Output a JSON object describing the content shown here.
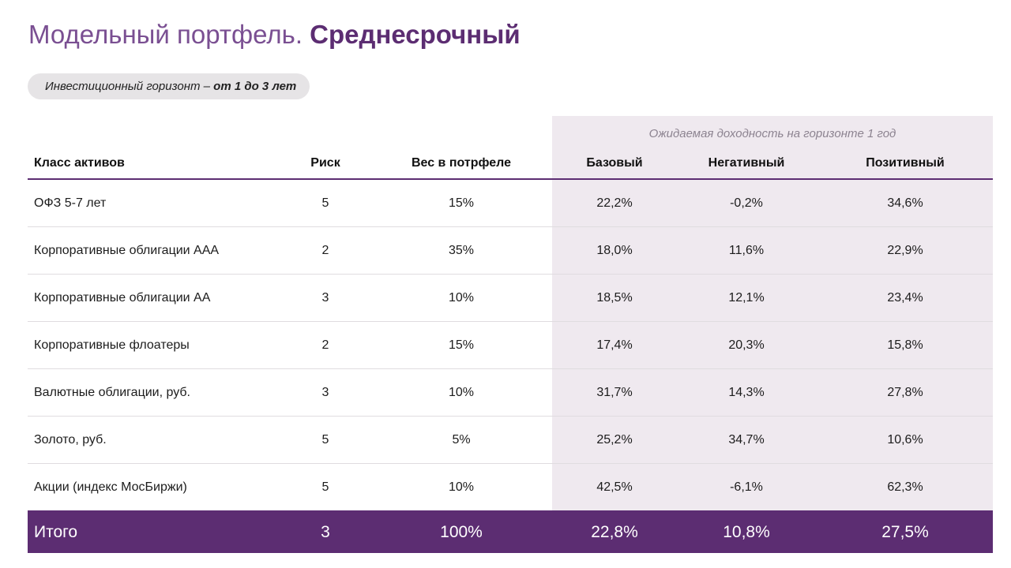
{
  "title": {
    "light": "Модельный портфель.",
    "bold": "Среднесрочный"
  },
  "horizon": {
    "prefix": "Инвестиционный горизонт – ",
    "value": "от 1 до 3 лет"
  },
  "table": {
    "group_header": "Ожидаемая доходность на горизонте 1 год",
    "columns": {
      "asset": "Класс активов",
      "risk": "Риск",
      "weight": "Вес в потрфеле",
      "base": "Базовый",
      "negative": "Негативный",
      "positive": "Позитивный"
    },
    "rows": [
      {
        "asset": "ОФЗ 5-7 лет",
        "risk": "5",
        "weight": "15%",
        "base": "22,2%",
        "negative": "-0,2%",
        "positive": "34,6%"
      },
      {
        "asset": "Корпоративные облигации ААА",
        "risk": "2",
        "weight": "35%",
        "base": "18,0%",
        "negative": "11,6%",
        "positive": "22,9%"
      },
      {
        "asset": "Корпоративные облигации АА",
        "risk": "3",
        "weight": "10%",
        "base": "18,5%",
        "negative": "12,1%",
        "positive": "23,4%"
      },
      {
        "asset": "Корпоративные флоатеры",
        "risk": "2",
        "weight": "15%",
        "base": "17,4%",
        "negative": "20,3%",
        "positive": "15,8%"
      },
      {
        "asset": "Валютные облигации, руб.",
        "risk": "3",
        "weight": "10%",
        "base": "31,7%",
        "negative": "14,3%",
        "positive": "27,8%"
      },
      {
        "asset": "Золото, руб.",
        "risk": "5",
        "weight": "5%",
        "base": "25,2%",
        "negative": "34,7%",
        "positive": "10,6%"
      },
      {
        "asset": "Акции (индекс МосБиржи)",
        "risk": "5",
        "weight": "10%",
        "base": "42,5%",
        "negative": "-6,1%",
        "positive": "62,3%"
      }
    ],
    "total": {
      "asset": "Итого",
      "risk": "3",
      "weight": "100%",
      "base": "22,8%",
      "negative": "10,8%",
      "positive": "27,5%"
    }
  },
  "colors": {
    "accent": "#5c2d72",
    "shade": "#efe9ef",
    "pill": "#e6e4e6"
  }
}
